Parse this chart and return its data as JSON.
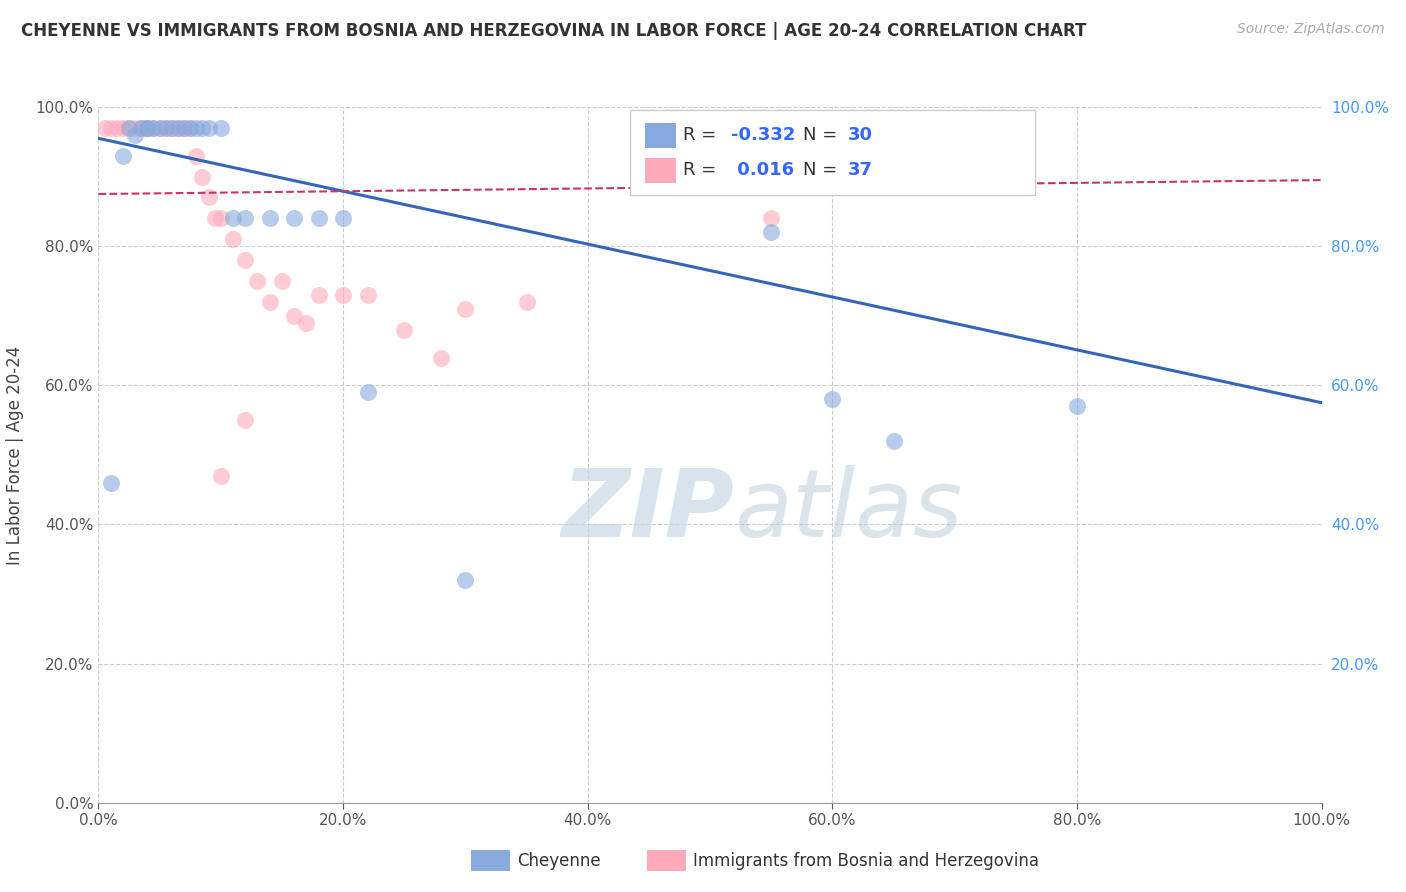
{
  "title": "CHEYENNE VS IMMIGRANTS FROM BOSNIA AND HERZEGOVINA IN LABOR FORCE | AGE 20-24 CORRELATION CHART",
  "source": "Source: ZipAtlas.com",
  "ylabel": "In Labor Force | Age 20-24",
  "watermark_zip": "ZIP",
  "watermark_atlas": "atlas",
  "xlim": [
    0.0,
    1.0
  ],
  "ylim": [
    0.0,
    1.0
  ],
  "xtick_vals": [
    0.0,
    0.2,
    0.4,
    0.6,
    0.8,
    1.0
  ],
  "ytick_vals": [
    0.0,
    0.2,
    0.4,
    0.6,
    0.8,
    1.0
  ],
  "grid_color": "#cccccc",
  "background_color": "#ffffff",
  "blue_color": "#88aadd",
  "pink_color": "#ffaabb",
  "blue_line_color": "#3366bb",
  "pink_line_color": "#cc3366",
  "right_tick_color": "#4499ff",
  "blue_R": "-0.332",
  "blue_N": "30",
  "pink_R": "0.016",
  "pink_N": "37",
  "cheyenne_label": "Cheyenne",
  "immigrants_label": "Immigrants from Bosnia and Herzegovina",
  "blue_scatter_x": [
    0.01,
    0.02,
    0.025,
    0.03,
    0.035,
    0.04,
    0.04,
    0.045,
    0.05,
    0.055,
    0.06,
    0.065,
    0.07,
    0.075,
    0.08,
    0.085,
    0.09,
    0.1,
    0.11,
    0.12,
    0.14,
    0.16,
    0.18,
    0.2,
    0.22,
    0.3,
    0.55,
    0.6,
    0.65,
    0.8
  ],
  "blue_scatter_y": [
    0.46,
    0.93,
    0.97,
    0.96,
    0.97,
    0.97,
    0.97,
    0.97,
    0.97,
    0.97,
    0.97,
    0.97,
    0.97,
    0.97,
    0.97,
    0.97,
    0.97,
    0.97,
    0.84,
    0.84,
    0.84,
    0.84,
    0.84,
    0.84,
    0.59,
    0.32,
    0.82,
    0.58,
    0.52,
    0.57
  ],
  "pink_scatter_x": [
    0.005,
    0.01,
    0.015,
    0.02,
    0.025,
    0.03,
    0.035,
    0.04,
    0.045,
    0.05,
    0.055,
    0.06,
    0.065,
    0.07,
    0.075,
    0.08,
    0.085,
    0.09,
    0.095,
    0.1,
    0.11,
    0.12,
    0.13,
    0.14,
    0.15,
    0.16,
    0.17,
    0.18,
    0.2,
    0.22,
    0.25,
    0.28,
    0.3,
    0.35,
    0.55,
    0.12,
    0.1
  ],
  "pink_scatter_y": [
    0.97,
    0.97,
    0.97,
    0.97,
    0.97,
    0.97,
    0.97,
    0.97,
    0.97,
    0.97,
    0.97,
    0.97,
    0.97,
    0.97,
    0.97,
    0.93,
    0.9,
    0.87,
    0.84,
    0.84,
    0.81,
    0.78,
    0.75,
    0.72,
    0.75,
    0.7,
    0.69,
    0.73,
    0.73,
    0.73,
    0.68,
    0.64,
    0.71,
    0.72,
    0.84,
    0.55,
    0.47
  ],
  "blue_line_x": [
    0.0,
    1.0
  ],
  "blue_line_y": [
    0.955,
    0.575
  ],
  "pink_line_x": [
    0.0,
    1.0
  ],
  "pink_line_y": [
    0.875,
    0.895
  ]
}
